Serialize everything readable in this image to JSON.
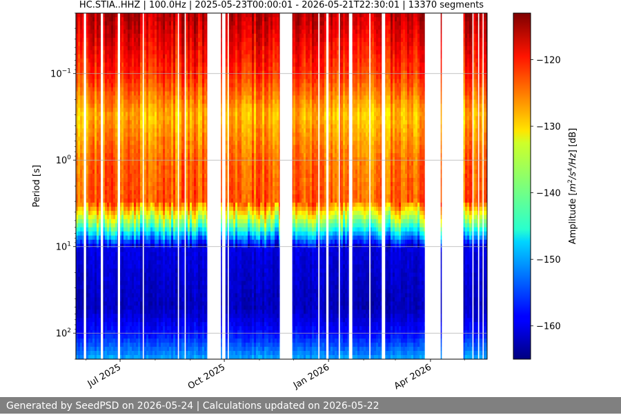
{
  "chart_data": {
    "type": "heatmap",
    "title": "HC.STIA..HHZ | 100.0Hz | 2025-05-23T00:00:01 - 2026-05-21T22:30:01 | 13370 segments",
    "xlabel": "",
    "ylabel": "Period [s]",
    "x_range": [
      "2025-05-23",
      "2026-05-21"
    ],
    "x_ticks": [
      {
        "date": "2025-07-01",
        "label": "Jul 2025"
      },
      {
        "date": "2025-10-01",
        "label": "Oct 2025"
      },
      {
        "date": "2026-01-01",
        "label": "Jan 2026"
      },
      {
        "date": "2026-04-01",
        "label": "Apr 2026"
      }
    ],
    "y_scale": "log",
    "y_inverted": true,
    "y_range_s": [
      0.02,
      200
    ],
    "y_ticks": [
      {
        "value": 0.1,
        "base": "10",
        "exp": "−1"
      },
      {
        "value": 1,
        "base": "10",
        "exp": "0"
      },
      {
        "value": 10,
        "base": "10",
        "exp": "1"
      },
      {
        "value": 100,
        "base": "10",
        "exp": "2"
      }
    ],
    "grid": true,
    "colormap": "jet",
    "colorbar": {
      "label_prefix": "Amplitude [",
      "label_math": "m",
      "sup1": "2",
      "mid": "/s",
      "sup2": "4",
      "tail": "/Hz",
      "label_suffix": "] [dB]",
      "range_db": [
        -165,
        -113
      ],
      "ticks": [
        -120,
        -130,
        -140,
        -150,
        -160
      ]
    },
    "amplitude_profile_db": [
      {
        "period_s": 0.02,
        "db": -116
      },
      {
        "period_s": 0.1,
        "db": -122
      },
      {
        "period_s": 0.3,
        "db": -129
      },
      {
        "period_s": 1.0,
        "db": -125
      },
      {
        "period_s": 3.0,
        "db": -124
      },
      {
        "period_s": 6.0,
        "db": -142
      },
      {
        "period_s": 10.0,
        "db": -160
      },
      {
        "period_s": 50.0,
        "db": -162
      },
      {
        "period_s": 100.0,
        "db": -158
      },
      {
        "period_s": 200.0,
        "db": -150
      }
    ],
    "data_gaps": [
      [
        "2025-05-30",
        "2025-06-01"
      ],
      [
        "2025-06-14",
        "2025-06-16"
      ],
      [
        "2025-06-29",
        "2025-07-01"
      ],
      [
        "2025-07-21",
        "2025-07-22"
      ],
      [
        "2025-08-21",
        "2025-08-22"
      ],
      [
        "2025-08-27",
        "2025-08-28"
      ],
      [
        "2025-09-16",
        "2025-09-28"
      ],
      [
        "2025-09-29",
        "2025-10-02"
      ],
      [
        "2025-10-04",
        "2025-10-05"
      ],
      [
        "2025-11-19",
        "2025-11-30"
      ],
      [
        "2025-12-23",
        "2025-12-24"
      ],
      [
        "2025-12-30",
        "2026-01-01"
      ],
      [
        "2026-01-10",
        "2026-01-11"
      ],
      [
        "2026-01-19",
        "2026-01-22"
      ],
      [
        "2026-02-06",
        "2026-02-07"
      ],
      [
        "2026-02-17",
        "2026-02-20"
      ],
      [
        "2026-03-27",
        "2026-04-10"
      ],
      [
        "2026-04-11",
        "2026-04-30"
      ],
      [
        "2026-05-08",
        "2026-05-09"
      ],
      [
        "2026-05-13",
        "2026-05-14"
      ],
      [
        "2026-05-17",
        "2026-05-18"
      ]
    ]
  },
  "footer": {
    "text": "Generated by SeedPSD on 2026-05-24 | Calculations updated on 2026-05-22"
  }
}
